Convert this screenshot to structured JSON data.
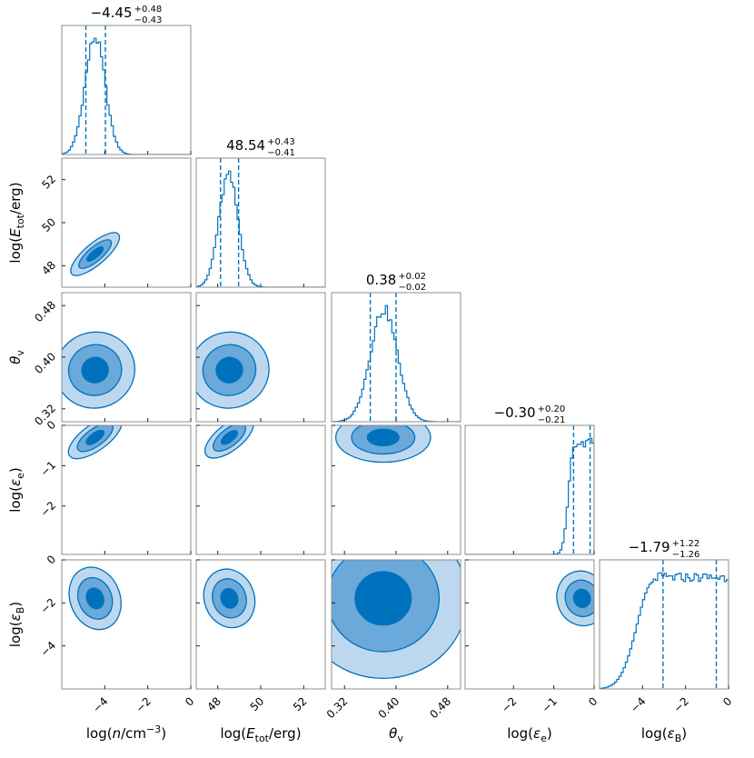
{
  "chart_data": {
    "type": "corner",
    "parameters": [
      {
        "key": "n",
        "label_pre": "log(",
        "label_var": "n",
        "label_post": "/cm",
        "label_sup": "−3",
        "label_end": ")",
        "range": [
          -6,
          0
        ],
        "ticks": [
          -4,
          -2,
          0
        ],
        "tick_labels": [
          "−4",
          "−2",
          "0"
        ],
        "median": -4.45,
        "plus": 0.48,
        "minus": 0.43,
        "title_median": "−4.45",
        "title_plus": "+0.48",
        "title_minus": "−0.43",
        "hist": {
          "center": -4.45,
          "sigma": 0.47,
          "flat_range": null
        }
      },
      {
        "key": "E",
        "label_pre": "log(",
        "label_var": "E",
        "label_sub": "tot",
        "label_post": "/erg)",
        "range": [
          47,
          53
        ],
        "ticks": [
          48,
          50,
          52
        ],
        "tick_labels": [
          "48",
          "50",
          "52"
        ],
        "median": 48.54,
        "plus": 0.43,
        "minus": 0.41,
        "title_median": "48.54",
        "title_plus": "+0.43",
        "title_minus": "−0.41",
        "hist": {
          "center": 48.5,
          "sigma": 0.45,
          "flat_range": null
        }
      },
      {
        "key": "theta",
        "label_var": "θ",
        "label_sub": "v",
        "range": [
          0.3,
          0.5
        ],
        "ticks": [
          0.32,
          0.4,
          0.48
        ],
        "tick_labels": [
          "0.32",
          "0.40",
          "0.48"
        ],
        "median": 0.38,
        "plus": 0.02,
        "minus": 0.02,
        "title_median": "0.38",
        "title_plus": "+0.02",
        "title_minus": "−0.02",
        "hist": {
          "center": 0.381,
          "sigma": 0.021,
          "flat_range": null
        }
      },
      {
        "key": "ee",
        "label_pre": "log(",
        "label_var": "ε",
        "label_sub": "e",
        "label_end": ")",
        "range": [
          -3.2,
          0
        ],
        "ticks": [
          -2,
          -1,
          0
        ],
        "tick_labels": [
          "−2",
          "−1",
          "0"
        ],
        "median": -0.3,
        "plus": 0.2,
        "minus": 0.21,
        "title_median": "−0.30",
        "title_plus": "+0.20",
        "title_minus": "−0.21",
        "hist": {
          "center": -0.3,
          "sigma": 0.2,
          "flat_range": [
            -0.5,
            0
          ]
        }
      },
      {
        "key": "eB",
        "label_pre": "log(",
        "label_var": "ε",
        "label_sub": "B",
        "label_end": ")",
        "range": [
          -6,
          0
        ],
        "ticks": [
          -4,
          -2,
          0
        ],
        "tick_labels": [
          "−4",
          "−2",
          "0"
        ],
        "median": -1.79,
        "plus": 1.22,
        "minus": 1.26,
        "title_median": "−1.79",
        "title_plus": "+1.22",
        "title_minus": "−1.26",
        "hist": {
          "center": -1.79,
          "sigma": 1.2,
          "flat_range": [
            -3.5,
            0
          ]
        }
      }
    ],
    "quantile_lines": [
      0.16,
      0.84
    ],
    "contour_levels": [
      "1σ",
      "2σ",
      "3σ"
    ],
    "colors": {
      "main": "#0072bd",
      "fill_1": "#0072bd",
      "fill_2": "#6aa9d9",
      "fill_3": "#bdd8ee",
      "frame": "#8c8c8c"
    }
  }
}
